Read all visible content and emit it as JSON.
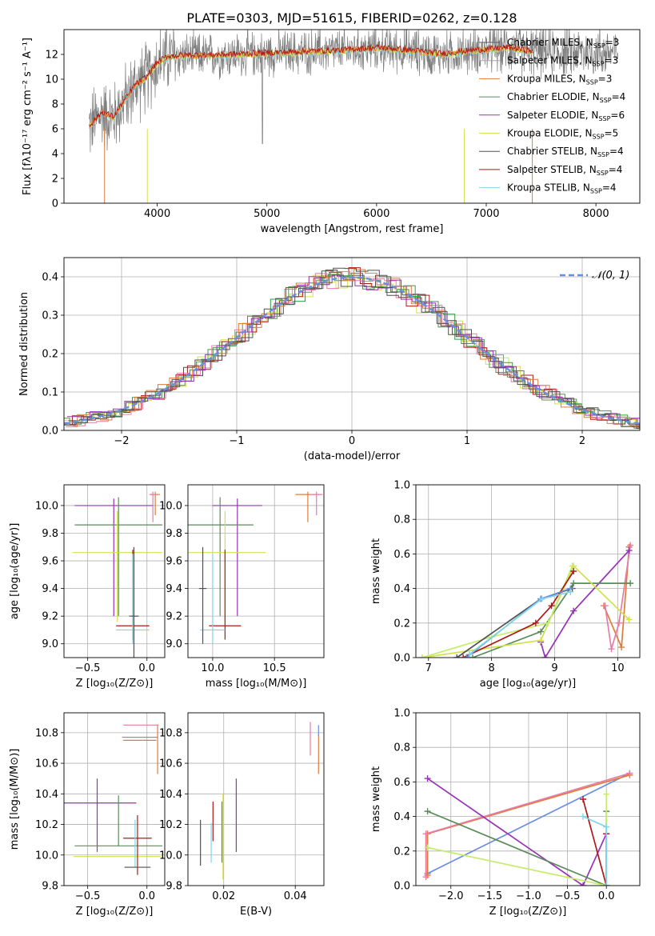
{
  "figure": {
    "title": "PLATE=0303, MJD=51615, FIBERID=0262, z=0.128"
  },
  "model_colors": [
    "#4f4f4f",
    "#a6a6a6",
    "#e07b39",
    "#5a8c5a",
    "#9a31b8",
    "#d4e04a",
    "#505050",
    "#b01818",
    "#7fd6e6",
    "#e87ca6",
    "#6a8fe0",
    "#2fa040",
    "#c7ec6a"
  ],
  "chart_data": [
    {
      "id": "spectrum",
      "type": "line",
      "title": "PLATE=0303, MJD=51615, FIBERID=0262, z=0.128",
      "xlabel": "wavelength [Angstrom, rest frame]",
      "ylabel": "Flux [fλ10⁻¹⁷ erg cm⁻² s⁻¹ A⁻¹]",
      "xlim": [
        3150,
        8400
      ],
      "ylim": [
        0,
        14
      ],
      "xticks": [
        4000,
        5000,
        6000,
        7000,
        8000
      ],
      "yticks": [
        0,
        2,
        4,
        6,
        8,
        10,
        12
      ],
      "grid": false,
      "legend_position": "right",
      "series": [
        {
          "name": "Chabrier MILES, N$_{SSP}$=3",
          "color": "#5b5b5b"
        },
        {
          "name": "Salpeter MILES, N$_{SSP}$=3",
          "color": "#a6a6a6"
        },
        {
          "name": "Kroupa MILES, N$_{SSP}$=3",
          "color": "#e07b39"
        },
        {
          "name": "Chabrier ELODIE, N$_{SSP}$=4",
          "color": "#5a8c5a"
        },
        {
          "name": "Salpeter ELODIE, N$_{SSP}$=6",
          "color": "#9a31b8"
        },
        {
          "name": "Kroupa ELODIE, N$_{SSP}$=5",
          "color": "#d4e04a"
        },
        {
          "name": "Chabrier STELIB, N$_{SSP}$=4",
          "color": "#505050"
        },
        {
          "name": "Salpeter STELIB, N$_{SSP}$=4",
          "color": "#b01818"
        },
        {
          "name": "Kroupa STELIB, N$_{SSP}$=4",
          "color": "#7fd6e6"
        }
      ],
      "model_curve": {
        "x": [
          3380,
          3500,
          3600,
          3700,
          3800,
          3900,
          4000,
          4100,
          4300,
          4500,
          4800,
          5100,
          5400,
          5700,
          6000,
          6300,
          6600,
          6900,
          7200,
          7420
        ],
        "y": [
          6.2,
          7.3,
          6.9,
          8.2,
          9.5,
          10.1,
          11.3,
          11.8,
          11.9,
          11.9,
          12.0,
          12.1,
          12.2,
          12.3,
          12.5,
          12.3,
          12.0,
          12.3,
          12.5,
          12.2
        ]
      }
    },
    {
      "id": "residuals",
      "type": "line",
      "xlabel": "(data-model)/error",
      "ylabel": "Normed distribution",
      "xlim": [
        -2.5,
        2.5
      ],
      "ylim": [
        0,
        0.45
      ],
      "xticks": [
        -2,
        -1,
        0,
        1,
        2
      ],
      "yticks": [
        0.0,
        0.1,
        0.2,
        0.3,
        0.4
      ],
      "grid": true,
      "legend": [
        "𝒩(0, 1)"
      ],
      "legend_position": "top-right",
      "gaussian": {
        "mean": 0,
        "sigma": 1
      }
    },
    {
      "id": "age_vs_Z",
      "type": "scatter",
      "xlabel": "Z [log₁₀(Z/Z⊙)]",
      "ylabel": "age  [log₁₀(age/yr)]",
      "xlim": [
        -0.7,
        0.15
      ],
      "ylim": [
        8.9,
        10.15
      ],
      "xticks": [
        -0.5,
        0.0
      ],
      "yticks": [
        9.0,
        9.2,
        9.4,
        9.6,
        9.8,
        10.0
      ],
      "grid": true,
      "errorbars": [
        {
          "x": 0.07,
          "y": 10.08,
          "xerr": 0.04,
          "yerr": [
            0.15,
            0.02
          ],
          "color": "#e07b39"
        },
        {
          "x": 0.05,
          "y": 10.08,
          "xerr": 0.03,
          "yerr": [
            0.2,
            0.02
          ],
          "color": "#e87ca6"
        },
        {
          "x": -0.28,
          "y": 10.0,
          "xerr": 0.33,
          "yerr": [
            0.8,
            0.05
          ],
          "color": "#9a31b8"
        },
        {
          "x": -0.24,
          "y": 9.86,
          "xerr": 0.37,
          "yerr": [
            0.66,
            0.2
          ],
          "color": "#5a8c5a"
        },
        {
          "x": -0.25,
          "y": 9.66,
          "xerr": 0.38,
          "yerr": [
            0.5,
            0.3
          ],
          "color": "#d4e04a"
        },
        {
          "x": -0.12,
          "y": 9.13,
          "xerr": 0.14,
          "yerr": [
            0.1,
            0.55
          ],
          "color": "#b01818"
        },
        {
          "x": -0.12,
          "y": 9.1,
          "xerr": 0.14,
          "yerr": [
            0.1,
            0.55
          ],
          "color": "#7fd6e6"
        },
        {
          "x": -0.11,
          "y": 9.2,
          "xerr": 0.04,
          "yerr": [
            0.3,
            0.5
          ],
          "color": "#505050"
        }
      ]
    },
    {
      "id": "age_vs_mass",
      "type": "scatter",
      "xlabel": "mass [log₁₀(M/M⊙)]",
      "ylabel": "",
      "xlim": [
        9.8,
        10.9
      ],
      "ylim": [
        8.9,
        10.15
      ],
      "xticks": [
        10.0,
        10.5
      ],
      "yticks": [
        9.0,
        9.2,
        9.4,
        9.6,
        9.8,
        10.0
      ],
      "grid": true,
      "errorbars": [
        {
          "x": 10.77,
          "y": 10.08,
          "xerr": 0.1,
          "yerr": [
            0.2,
            0.02
          ],
          "color": "#e07b39"
        },
        {
          "x": 10.84,
          "y": 10.08,
          "xerr": 0.05,
          "yerr": [
            0.15,
            0.02
          ],
          "color": "#e87ca6"
        },
        {
          "x": 10.2,
          "y": 10.0,
          "xerr": 0.2,
          "yerr": [
            0.8,
            0.05
          ],
          "color": "#9a31b8"
        },
        {
          "x": 10.06,
          "y": 9.86,
          "xerr": 0.27,
          "yerr": [
            0.66,
            0.2
          ],
          "color": "#5a8c5a"
        },
        {
          "x": 10.1,
          "y": 9.66,
          "xerr": 0.33,
          "yerr": [
            0.5,
            0.3
          ],
          "color": "#d4e04a"
        },
        {
          "x": 10.1,
          "y": 9.13,
          "xerr": 0.13,
          "yerr": [
            0.1,
            0.55
          ],
          "color": "#b01818"
        },
        {
          "x": 10.0,
          "y": 9.1,
          "xerr": 0.1,
          "yerr": [
            0.1,
            0.55
          ],
          "color": "#7fd6e6"
        },
        {
          "x": 9.92,
          "y": 9.4,
          "xerr": 0.03,
          "yerr": [
            0.4,
            0.3
          ],
          "color": "#505050"
        }
      ]
    },
    {
      "id": "mass_weight_vs_age",
      "type": "line",
      "xlabel": "age  [log₁₀(age/yr)]",
      "ylabel": "mass weight",
      "xlim": [
        6.8,
        10.35
      ],
      "ylim": [
        0.0,
        1.0
      ],
      "xticks": [
        7,
        8,
        9,
        10
      ],
      "yticks": [
        0.0,
        0.2,
        0.4,
        0.6,
        0.8,
        1.0
      ],
      "grid": true,
      "series": [
        {
          "color": "#e07b39",
          "x": [
            9.78,
            10.06,
            10.18
          ],
          "y": [
            0.3,
            0.06,
            0.64
          ]
        },
        {
          "color": "#e87ca6",
          "x": [
            9.8,
            9.9,
            10.02,
            10.2
          ],
          "y": [
            0.3,
            0.05,
            0.2,
            0.65
          ]
        },
        {
          "color": "#9a31b8",
          "x": [
            8.78,
            8.85,
            9.3,
            10.18
          ],
          "y": [
            0.09,
            0.0,
            0.27,
            0.62
          ]
        },
        {
          "color": "#5a8c5a",
          "x": [
            7.7,
            8.78,
            9.3,
            10.2
          ],
          "y": [
            0.0,
            0.15,
            0.43,
            0.43
          ]
        },
        {
          "color": "#d4e04a",
          "x": [
            6.9,
            8.78,
            9.3,
            10.18
          ],
          "y": [
            0.0,
            0.1,
            0.53,
            0.22
          ]
        },
        {
          "color": "#c7ec6a",
          "x": [
            6.9,
            8.0,
            8.9,
            9.28
          ],
          "y": [
            0.0,
            0.12,
            0.2,
            0.53
          ]
        },
        {
          "color": "#505050",
          "x": [
            7.45,
            8.78,
            9.28
          ],
          "y": [
            0.0,
            0.34,
            0.4
          ]
        },
        {
          "color": "#b01818",
          "x": [
            7.55,
            8.7,
            8.95,
            9.3
          ],
          "y": [
            0.0,
            0.2,
            0.3,
            0.5
          ]
        },
        {
          "color": "#6a8fe0",
          "x": [
            7.6,
            8.78,
            9.25
          ],
          "y": [
            0.0,
            0.34,
            0.4
          ]
        },
        {
          "color": "#7fd6e6",
          "x": [
            7.65,
            8.8,
            9.25
          ],
          "y": [
            0.02,
            0.34,
            0.38
          ]
        }
      ]
    },
    {
      "id": "mass_vs_Z",
      "type": "scatter",
      "xlabel": "Z [log₁₀(Z/Z⊙)]",
      "ylabel": "mass [log₁₀(M/M⊙)]",
      "xlim": [
        -0.7,
        0.15
      ],
      "ylim": [
        9.8,
        10.93
      ],
      "xticks": [
        -0.5,
        0.0
      ],
      "yticks": [
        9.8,
        10.0,
        10.2,
        10.4,
        10.6,
        10.8
      ],
      "grid": true,
      "errorbars": [
        {
          "x": -0.05,
          "y": 10.85,
          "xerr": 0.15,
          "yerr": [
            0.0,
            0.0
          ],
          "color": "#e87ca6"
        },
        {
          "x": -0.06,
          "y": 10.77,
          "xerr": 0.15,
          "yerr": [
            0.0,
            0.0
          ],
          "color": "#6a8fe0"
        },
        {
          "x": -0.06,
          "y": 10.75,
          "xerr": 0.14,
          "yerr": [
            0.0,
            0.0
          ],
          "color": "#e07b39"
        },
        {
          "x": 0.09,
          "y": 10.75,
          "xerr": 0.0,
          "yerr": [
            0.22,
            0.1
          ],
          "color": "#e07b39"
        },
        {
          "x": -0.42,
          "y": 10.34,
          "xerr": 0.33,
          "yerr": [
            0.32,
            0.16
          ],
          "color": "#9a31b8"
        },
        {
          "x": -0.24,
          "y": 10.06,
          "xerr": 0.37,
          "yerr": [
            0.0,
            0.33
          ],
          "color": "#5a8c5a"
        },
        {
          "x": -0.25,
          "y": 9.99,
          "xerr": 0.37,
          "yerr": [
            0.0,
            0.0
          ],
          "color": "#d4e04a"
        },
        {
          "x": -0.08,
          "y": 10.11,
          "xerr": 0.12,
          "yerr": [
            0.24,
            0.15
          ],
          "color": "#b01818"
        },
        {
          "x": -0.1,
          "y": 10.06,
          "xerr": 0.0,
          "yerr": [
            0.14,
            0.17
          ],
          "color": "#7fd6e6"
        },
        {
          "x": -0.08,
          "y": 9.92,
          "xerr": 0.11,
          "yerr": [
            0.0,
            0.0
          ],
          "color": "#505050"
        }
      ]
    },
    {
      "id": "mass_vs_ebv",
      "type": "scatter",
      "xlabel": "E(B-V)",
      "ylabel": "",
      "xlim": [
        0.01,
        0.048
      ],
      "ylim": [
        9.8,
        10.93
      ],
      "xticks": [
        0.02,
        0.04
      ],
      "yticks": [
        9.8,
        10.0,
        10.2,
        10.4,
        10.6,
        10.8
      ],
      "grid": true,
      "errorbars": [
        {
          "x": 0.0442,
          "y": 10.75,
          "yerr": [
            0.1,
            0.12
          ],
          "color": "#e87ca6"
        },
        {
          "x": 0.0465,
          "y": 10.66,
          "yerr": [
            0.13,
            0.13
          ],
          "color": "#e07b39"
        },
        {
          "x": 0.0465,
          "y": 10.8,
          "yerr": [
            0.02,
            0.05
          ],
          "color": "#6a8fe0"
        },
        {
          "x": 0.0235,
          "y": 10.26,
          "yerr": [
            0.24,
            0.24
          ],
          "color": "#9a31b8"
        },
        {
          "x": 0.0195,
          "y": 10.15,
          "yerr": [
            0.2,
            0.2
          ],
          "color": "#5a8c5a"
        },
        {
          "x": 0.0198,
          "y": 10.12,
          "yerr": [
            0.28,
            0.28
          ],
          "color": "#d4e04a"
        },
        {
          "x": 0.017,
          "y": 10.22,
          "yerr": [
            0.13,
            0.13
          ],
          "color": "#b01818"
        },
        {
          "x": 0.0165,
          "y": 10.08,
          "yerr": [
            0.13,
            0.13
          ],
          "color": "#7fd6e6"
        },
        {
          "x": 0.0135,
          "y": 10.08,
          "yerr": [
            0.15,
            0.15
          ],
          "color": "#505050"
        }
      ]
    },
    {
      "id": "mass_weight_vs_Z",
      "type": "line",
      "xlabel": "Z [log₁₀(Z/Z⊙)]",
      "ylabel": "mass weight",
      "xlim": [
        -2.45,
        0.43
      ],
      "ylim": [
        0.0,
        1.0
      ],
      "xticks": [
        -2.0,
        -1.5,
        -1.0,
        -0.5,
        0.0
      ],
      "yticks": [
        0.0,
        0.2,
        0.4,
        0.6,
        0.8,
        1.0
      ],
      "grid": true,
      "series": [
        {
          "color": "#6a8fe0",
          "x": [
            -2.3,
            0.3
          ],
          "y": [
            0.07,
            0.65
          ]
        },
        {
          "color": "#e07b39",
          "x": [
            -2.3,
            -2.3,
            0.3
          ],
          "y": [
            0.06,
            0.3,
            0.64
          ]
        },
        {
          "color": "#e87ca6",
          "x": [
            -2.32,
            -2.32,
            0.3
          ],
          "y": [
            0.05,
            0.3,
            0.65
          ]
        },
        {
          "color": "#9a31b8",
          "x": [
            -2.3,
            -0.3,
            0.0
          ],
          "y": [
            0.62,
            0.0,
            0.3
          ]
        },
        {
          "color": "#5a8c5a",
          "x": [
            -2.3,
            0.0,
            0.0
          ],
          "y": [
            0.43,
            0.0,
            0.43
          ]
        },
        {
          "color": "#c7ec6a",
          "x": [
            -2.3,
            0.0,
            0.0
          ],
          "y": [
            0.22,
            0.0,
            0.53
          ]
        },
        {
          "color": "#b01818",
          "x": [
            -0.3,
            0.0,
            0.0
          ],
          "y": [
            0.5,
            0.0,
            0.3
          ]
        },
        {
          "color": "#7fd6e6",
          "x": [
            -0.3,
            0.0,
            0.0
          ],
          "y": [
            0.4,
            0.34,
            0.0
          ]
        }
      ]
    }
  ]
}
